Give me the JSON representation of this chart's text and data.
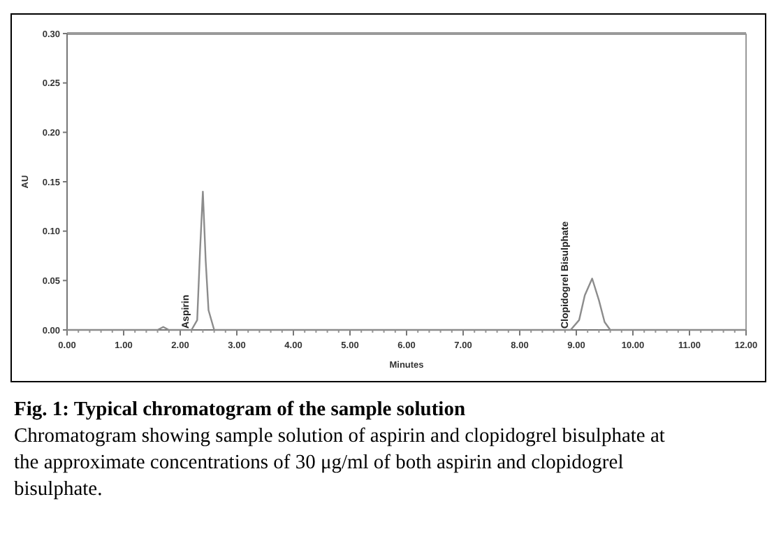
{
  "chart_data": {
    "type": "line",
    "title": "Fig. 1: Typical chromatogram of the sample solution",
    "subtitle": "Chromatogram showing sample solution of aspirin and clopidogrel bisulphate at the approximate concentrations of 30 μg/ml of both aspirin and clopidogrel bisulphate.",
    "xlabel": "Minutes",
    "ylabel": "AU",
    "annotations": [
      {
        "text": "Aspirin",
        "x": 2.1,
        "y": 0
      },
      {
        "text": "Clopidogrel Bisulphate",
        "x": 8.8,
        "y": 0
      }
    ],
    "series": [
      {
        "color": "#8c8c8c",
        "x": [
          0,
          1.6,
          1.7,
          1.8,
          2.2,
          2.3,
          2.35,
          2.4,
          2.45,
          2.5,
          2.6,
          3.5,
          8.9,
          9.05,
          9.15,
          9.28,
          9.4,
          9.5,
          9.6,
          12
        ],
        "values": [
          0,
          0,
          0.003,
          0,
          0,
          0.01,
          0.08,
          0.14,
          0.07,
          0.02,
          0,
          0,
          0,
          0.01,
          0.035,
          0.052,
          0.03,
          0.008,
          0,
          0
        ]
      }
    ],
    "xlim": [
      0,
      12
    ],
    "ylim": [
      0,
      0.3
    ],
    "xticks": [
      {
        "value": 0,
        "label": "0.00"
      },
      {
        "value": 1,
        "label": "1.00"
      },
      {
        "value": 2,
        "label": "2.00"
      },
      {
        "value": 3,
        "label": "3.00"
      },
      {
        "value": 4,
        "label": "4.00"
      },
      {
        "value": 5,
        "label": "5.00"
      },
      {
        "value": 6,
        "label": "6.00"
      },
      {
        "value": 7,
        "label": "7.00"
      },
      {
        "value": 8,
        "label": "8.00"
      },
      {
        "value": 9,
        "label": "9.00"
      },
      {
        "value": 10,
        "label": "10.00"
      },
      {
        "value": 11,
        "label": "11.00"
      },
      {
        "value": 12,
        "label": "12.00"
      }
    ],
    "yticks": [
      {
        "value": 0,
        "label": "0.00"
      },
      {
        "value": 0.05,
        "label": "0.05"
      },
      {
        "value": 0.1,
        "label": "0.10"
      },
      {
        "value": 0.15,
        "label": "0.15"
      },
      {
        "value": 0.2,
        "label": "0.20"
      },
      {
        "value": 0.25,
        "label": "0.25"
      },
      {
        "value": 0.3,
        "label": "0.30"
      }
    ],
    "marker": "none",
    "line_style": "solid"
  }
}
